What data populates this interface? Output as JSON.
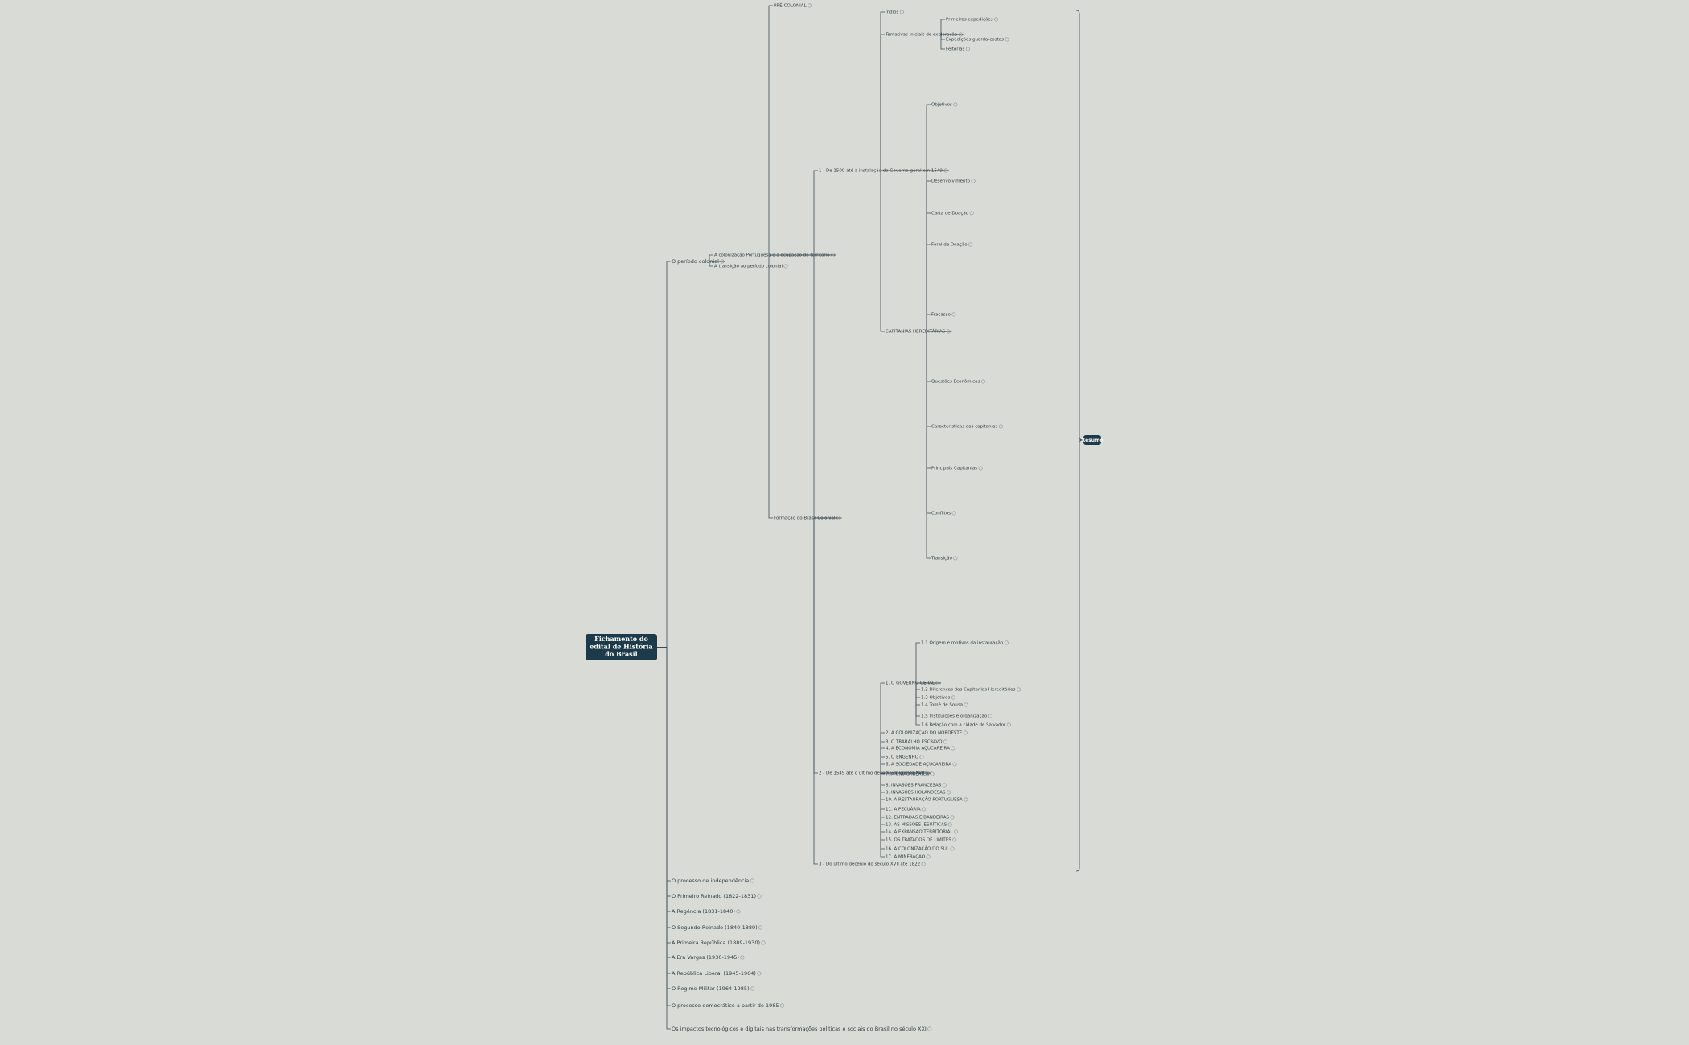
{
  "mindmap": {
    "root": {
      "label": "Fichamento do edital de História do Brasil",
      "children": [
        {
          "label": "O período colonial",
          "children": [
            {
              "label": "A colonização Portuguesa e a ocupação do território",
              "children": [
                {
                  "label": "PRÉ-COLONIAL",
                  "children": []
                },
                {
                  "label": "Formação do Brasil Colonial",
                  "children": [
                    {
                      "label": "1 - De 1500 até a instalação do Governo-geral em 1549",
                      "children": [
                        {
                          "label": "Índios",
                          "children": []
                        },
                        {
                          "label": "Tentativas iniciais de exploração",
                          "children": [
                            {
                              "label": "Primeiras expedições",
                              "children": []
                            },
                            {
                              "label": "Expedições guarda-costas",
                              "children": []
                            },
                            {
                              "label": "Feitorias",
                              "children": []
                            }
                          ]
                        },
                        {
                          "label": "CAPITANIAS HEREDITÁRIAS",
                          "children": [
                            {
                              "label": "Objetivos",
                              "children": []
                            },
                            {
                              "label": "Desenvolvimento",
                              "children": []
                            },
                            {
                              "label": "Carta de Doação",
                              "children": []
                            },
                            {
                              "label": "Foral de Doação",
                              "children": []
                            },
                            {
                              "label": "Fracasso",
                              "children": []
                            },
                            {
                              "label": "Questões Econômicas",
                              "children": []
                            },
                            {
                              "label": "Características das capitanias",
                              "children": []
                            },
                            {
                              "label": "Principais Capitanias",
                              "children": []
                            },
                            {
                              "label": "Conflitos",
                              "children": []
                            },
                            {
                              "label": "Transição",
                              "children": []
                            }
                          ]
                        }
                      ]
                    },
                    {
                      "label": "2 - De 1549 até o último decênio do século XVII",
                      "children": [
                        {
                          "label": "1. O GOVERNO GERAL",
                          "children": [
                            {
                              "label": "1.1 Origem e motivos da instauração",
                              "children": []
                            },
                            {
                              "label": "1.2 Diferenças das Capitanias Hereditárias",
                              "children": []
                            },
                            {
                              "label": "1.3 Objetivos",
                              "children": []
                            },
                            {
                              "label": "1.4 Tomé de Sousa",
                              "children": []
                            },
                            {
                              "label": "1.5 Instituições e organização",
                              "children": []
                            },
                            {
                              "label": "1.6 Relação com a cidade de Salvador",
                              "children": []
                            }
                          ]
                        },
                        {
                          "label": "2. A COLONIZAÇÃO DO NORDESTE",
                          "children": []
                        },
                        {
                          "label": "3. O TRABALHO ESCRAVO",
                          "children": []
                        },
                        {
                          "label": "4. A ECONOMIA AÇUCAREIRA",
                          "children": []
                        },
                        {
                          "label": "5. O ENGENHO",
                          "children": []
                        },
                        {
                          "label": "6. A SOCIEDADE AÇUCAREIRA",
                          "children": []
                        },
                        {
                          "label": "7. A UNIÃO IBÉRICA",
                          "children": []
                        },
                        {
                          "label": "8. INVASÕES FRANCESAS",
                          "children": []
                        },
                        {
                          "label": "9. INVASÕES HOLANDESAS",
                          "children": []
                        },
                        {
                          "label": "10. A RESTAURAÇÃO PORTUGUESA",
                          "children": []
                        },
                        {
                          "label": "11. A PECUÁRIA",
                          "children": []
                        },
                        {
                          "label": "12. ENTRADAS E BANDEIRAS",
                          "children": []
                        },
                        {
                          "label": "13. AS MISSÕES JESUÍTICAS",
                          "children": []
                        },
                        {
                          "label": "14. A EXPANSÃO TERRITORIAL",
                          "children": []
                        },
                        {
                          "label": "15. OS TRATADOS DE LIMITES",
                          "children": []
                        },
                        {
                          "label": "16. A COLONIZAÇÃO DO SUL",
                          "children": []
                        },
                        {
                          "label": "17. A MINERAÇÃO",
                          "children": []
                        }
                      ]
                    },
                    {
                      "label": "3 - Do último decênio do século XVII até 1822",
                      "children": []
                    }
                  ]
                }
              ]
            },
            {
              "label": "A transição ao período colonial",
              "children": []
            }
          ]
        },
        {
          "label": "O processo de independência",
          "children": []
        },
        {
          "label": "O Primeiro Reinado (1822-1831)",
          "children": []
        },
        {
          "label": "A Regência (1831-1840)",
          "children": []
        },
        {
          "label": "O Segundo Reinado (1840-1889)",
          "children": []
        },
        {
          "label": "A Primeira República (1889-1930)",
          "children": []
        },
        {
          "label": "A Era Vargas (1930-1945)",
          "children": []
        },
        {
          "label": "A República Liberal (1945-1964)",
          "children": []
        },
        {
          "label": "O Regime Militar (1964-1985)",
          "children": []
        },
        {
          "label": "O processo democrático a partir de 1985",
          "children": []
        },
        {
          "label": "Os impactos tecnológicos e digitais nas transformações políticas e sociais do Brasil no século XXI",
          "children": []
        }
      ]
    },
    "summary": "Resumo"
  }
}
